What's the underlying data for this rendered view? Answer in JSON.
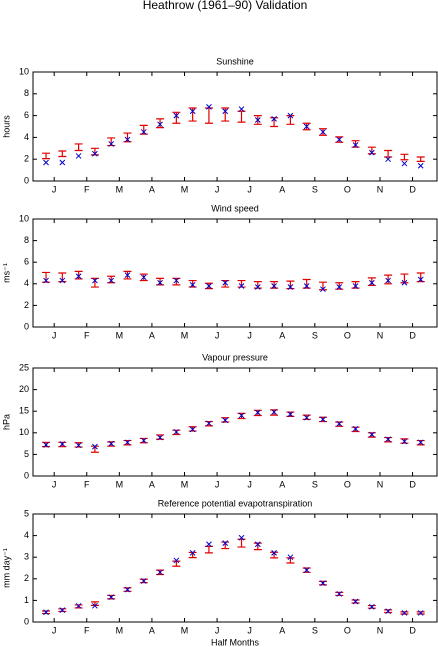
{
  "title": "Heathrow (1961–90) Validation",
  "chart_data": [
    {
      "type": "errorbar",
      "title": "Sunshine",
      "ylabel": "hours",
      "x": [
        1,
        2,
        3,
        4,
        5,
        6,
        7,
        8,
        9,
        10,
        11,
        12,
        13,
        14,
        15,
        16,
        17,
        18,
        19,
        20,
        21,
        22,
        23,
        24
      ],
      "xlim": [
        0.2,
        25
      ],
      "ylim": [
        0,
        10
      ],
      "yticks": [
        0,
        2,
        4,
        6,
        8,
        10
      ],
      "xticks": [
        {
          "value": 1.5,
          "label": "J"
        },
        {
          "value": 3.5,
          "label": "F"
        },
        {
          "value": 5.5,
          "label": "M"
        },
        {
          "value": 7.5,
          "label": "A"
        },
        {
          "value": 9.5,
          "label": "M"
        },
        {
          "value": 11.5,
          "label": "J"
        },
        {
          "value": 13.5,
          "label": "J"
        },
        {
          "value": 15.5,
          "label": "A"
        },
        {
          "value": 17.5,
          "label": "S"
        },
        {
          "value": 19.5,
          "label": "O"
        },
        {
          "value": 21.5,
          "label": "N"
        },
        {
          "value": 23.5,
          "label": "D"
        }
      ],
      "series": [
        {
          "color": "#e00000",
          "values": [
            2.3,
            2.5,
            3.1,
            2.7,
            3.6,
            4.0,
            4.7,
            5.3,
            5.8,
            6.1,
            6.0,
            6.1,
            5.9,
            5.6,
            5.4,
            5.6,
            5.0,
            4.5,
            3.8,
            3.4,
            2.8,
            2.5,
            2.2,
            2.0
          ],
          "errors": [
            0.25,
            0.25,
            0.3,
            0.3,
            0.35,
            0.4,
            0.4,
            0.4,
            0.5,
            0.6,
            0.7,
            0.6,
            0.5,
            0.4,
            0.4,
            0.4,
            0.3,
            0.3,
            0.25,
            0.3,
            0.3,
            0.3,
            0.25,
            0.2
          ]
        },
        {
          "color": "#0000cc",
          "marker": "x",
          "values": [
            1.7,
            1.7,
            2.3,
            2.5,
            3.4,
            3.8,
            4.5,
            5.2,
            6.0,
            6.4,
            6.8,
            6.4,
            6.6,
            5.6,
            5.7,
            6.0,
            5.0,
            4.5,
            3.8,
            3.3,
            2.6,
            2.0,
            1.6,
            1.4
          ]
        }
      ]
    },
    {
      "type": "errorbar",
      "title": "Wind speed",
      "ylabel": "ms⁻¹",
      "x": [
        1,
        2,
        3,
        4,
        5,
        6,
        7,
        8,
        9,
        10,
        11,
        12,
        13,
        14,
        15,
        16,
        17,
        18,
        19,
        20,
        21,
        22,
        23,
        24
      ],
      "xlim": [
        0.2,
        25
      ],
      "ylim": [
        0,
        10
      ],
      "yticks": [
        0,
        2,
        4,
        6,
        8,
        10
      ],
      "xticks": [
        {
          "value": 1.5,
          "label": "J"
        },
        {
          "value": 3.5,
          "label": "F"
        },
        {
          "value": 5.5,
          "label": "M"
        },
        {
          "value": 7.5,
          "label": "A"
        },
        {
          "value": 9.5,
          "label": "M"
        },
        {
          "value": 11.5,
          "label": "J"
        },
        {
          "value": 13.5,
          "label": "J"
        },
        {
          "value": 15.5,
          "label": "A"
        },
        {
          "value": 17.5,
          "label": "S"
        },
        {
          "value": 19.5,
          "label": "O"
        },
        {
          "value": 21.5,
          "label": "N"
        },
        {
          "value": 23.5,
          "label": "D"
        }
      ],
      "series": [
        {
          "color": "#e00000",
          "values": [
            4.6,
            4.6,
            4.8,
            4.1,
            4.4,
            4.8,
            4.6,
            4.2,
            4.2,
            4.0,
            3.8,
            4.0,
            4.0,
            3.9,
            3.9,
            3.9,
            4.0,
            3.8,
            3.8,
            3.9,
            4.2,
            4.4,
            4.5,
            4.6
          ],
          "errors": [
            0.45,
            0.4,
            0.35,
            0.4,
            0.3,
            0.35,
            0.3,
            0.3,
            0.3,
            0.3,
            0.25,
            0.3,
            0.3,
            0.3,
            0.3,
            0.35,
            0.4,
            0.35,
            0.3,
            0.3,
            0.35,
            0.4,
            0.4,
            0.4
          ]
        },
        {
          "color": "#0000cc",
          "marker": "x",
          "values": [
            4.3,
            4.3,
            4.7,
            4.3,
            4.3,
            4.8,
            4.6,
            4.1,
            4.3,
            3.9,
            3.8,
            4.1,
            3.8,
            3.7,
            3.8,
            3.7,
            3.8,
            3.5,
            3.7,
            3.8,
            4.1,
            4.3,
            4.1,
            4.4
          ]
        }
      ]
    },
    {
      "type": "errorbar",
      "title": "Vapour pressure",
      "ylabel": "hPa",
      "x": [
        1,
        2,
        3,
        4,
        5,
        6,
        7,
        8,
        9,
        10,
        11,
        12,
        13,
        14,
        15,
        16,
        17,
        18,
        19,
        20,
        21,
        22,
        23,
        24
      ],
      "xlim": [
        0.2,
        25
      ],
      "ylim": [
        0,
        25
      ],
      "yticks": [
        0,
        5,
        10,
        15,
        20,
        25
      ],
      "xticks": [
        {
          "value": 1.5,
          "label": "J"
        },
        {
          "value": 3.5,
          "label": "F"
        },
        {
          "value": 5.5,
          "label": "M"
        },
        {
          "value": 7.5,
          "label": "A"
        },
        {
          "value": 9.5,
          "label": "M"
        },
        {
          "value": 11.5,
          "label": "J"
        },
        {
          "value": 13.5,
          "label": "J"
        },
        {
          "value": 15.5,
          "label": "A"
        },
        {
          "value": 17.5,
          "label": "S"
        },
        {
          "value": 19.5,
          "label": "O"
        },
        {
          "value": 21.5,
          "label": "N"
        },
        {
          "value": 23.5,
          "label": "D"
        }
      ],
      "series": [
        {
          "color": "#e00000",
          "values": [
            7.3,
            7.3,
            7.2,
            6.2,
            7.4,
            7.7,
            8.2,
            9.0,
            10.1,
            10.9,
            12.1,
            13.0,
            13.9,
            14.6,
            14.7,
            14.3,
            13.6,
            13.1,
            12.0,
            10.8,
            9.5,
            8.4,
            8.1,
            7.7
          ],
          "errors": [
            0.5,
            0.5,
            0.5,
            0.7,
            0.5,
            0.5,
            0.5,
            0.5,
            0.5,
            0.5,
            0.5,
            0.5,
            0.6,
            0.6,
            0.6,
            0.5,
            0.5,
            0.5,
            0.5,
            0.5,
            0.5,
            0.5,
            0.5,
            0.5
          ]
        },
        {
          "color": "#0000cc",
          "marker": "x",
          "values": [
            7.2,
            7.4,
            7.1,
            6.8,
            7.5,
            7.8,
            8.2,
            8.9,
            10.2,
            10.8,
            12.2,
            12.9,
            14.0,
            14.7,
            14.8,
            14.3,
            13.5,
            13.1,
            12.1,
            10.9,
            9.6,
            8.5,
            8.0,
            7.8
          ]
        }
      ]
    },
    {
      "type": "errorbar",
      "title": "Reference potential evapotranspiration",
      "ylabel": "mm day⁻¹",
      "xlabel": "Half Months",
      "x": [
        1,
        2,
        3,
        4,
        5,
        6,
        7,
        8,
        9,
        10,
        11,
        12,
        13,
        14,
        15,
        16,
        17,
        18,
        19,
        20,
        21,
        22,
        23,
        24
      ],
      "xlim": [
        0.2,
        25
      ],
      "ylim": [
        0,
        5
      ],
      "yticks": [
        0,
        1,
        2,
        3,
        4,
        5
      ],
      "xticks": [
        {
          "value": 1.5,
          "label": "J"
        },
        {
          "value": 3.5,
          "label": "F"
        },
        {
          "value": 5.5,
          "label": "M"
        },
        {
          "value": 7.5,
          "label": "A"
        },
        {
          "value": 9.5,
          "label": "M"
        },
        {
          "value": 11.5,
          "label": "J"
        },
        {
          "value": 13.5,
          "label": "J"
        },
        {
          "value": 15.5,
          "label": "A"
        },
        {
          "value": 17.5,
          "label": "S"
        },
        {
          "value": 19.5,
          "label": "O"
        },
        {
          "value": 21.5,
          "label": "N"
        },
        {
          "value": 23.5,
          "label": "D"
        }
      ],
      "series": [
        {
          "color": "#e00000",
          "values": [
            0.45,
            0.55,
            0.72,
            0.85,
            1.15,
            1.5,
            1.9,
            2.3,
            2.7,
            3.1,
            3.35,
            3.55,
            3.65,
            3.5,
            3.1,
            2.85,
            2.4,
            1.8,
            1.3,
            0.95,
            0.7,
            0.5,
            0.42,
            0.42
          ],
          "errors": [
            0.06,
            0.06,
            0.07,
            0.08,
            0.08,
            0.08,
            0.08,
            0.1,
            0.12,
            0.12,
            0.15,
            0.15,
            0.18,
            0.15,
            0.13,
            0.12,
            0.1,
            0.08,
            0.07,
            0.07,
            0.06,
            0.06,
            0.05,
            0.05
          ]
        },
        {
          "color": "#0000cc",
          "marker": "x",
          "values": [
            0.45,
            0.55,
            0.75,
            0.75,
            1.15,
            1.5,
            1.9,
            2.3,
            2.85,
            3.2,
            3.6,
            3.65,
            3.9,
            3.6,
            3.2,
            3.0,
            2.4,
            1.8,
            1.3,
            0.95,
            0.7,
            0.5,
            0.42,
            0.42
          ]
        }
      ]
    }
  ]
}
